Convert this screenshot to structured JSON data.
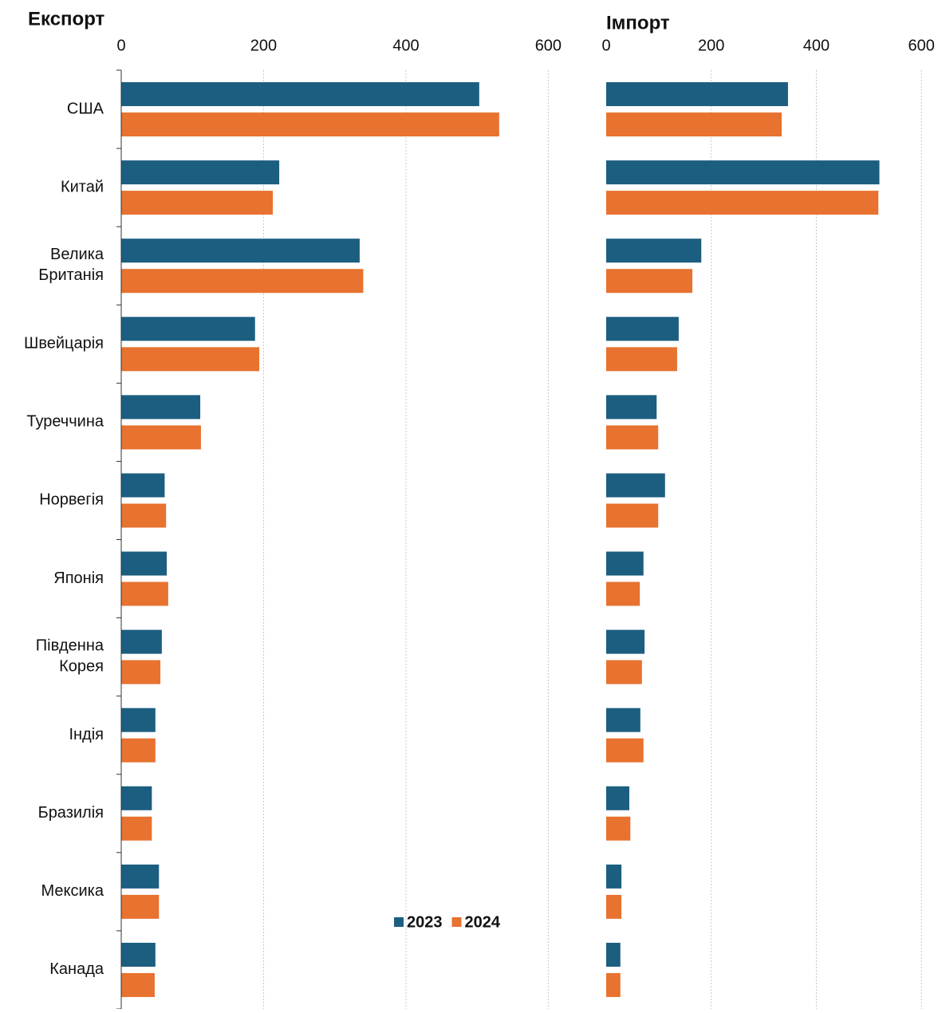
{
  "chart_data": [
    {
      "type": "bar",
      "orientation": "horizontal",
      "title": "Експорт",
      "categories": [
        "США",
        "Китай",
        "Велика Британія",
        "Швейцарія",
        "Туреччина",
        "Норвегія",
        "Японія",
        "Південна Корея",
        "Індія",
        "Бразилія",
        "Мексика",
        "Канада"
      ],
      "series": [
        {
          "name": "2023",
          "color": "#1b5e80",
          "values": [
            503,
            222,
            335,
            188,
            111,
            61,
            64,
            57,
            48,
            43,
            53,
            48
          ]
        },
        {
          "name": "2024",
          "color": "#e8722f",
          "values": [
            531,
            213,
            340,
            194,
            112,
            63,
            66,
            55,
            48,
            43,
            53,
            47
          ]
        }
      ],
      "xlim": [
        0,
        650
      ],
      "xticks": [
        0,
        200,
        400,
        600
      ],
      "grid": true
    },
    {
      "type": "bar",
      "orientation": "horizontal",
      "title": "Імпорт",
      "series": [
        {
          "name": "2023",
          "color": "#1b5e80",
          "values": [
            346,
            520,
            181,
            138,
            96,
            112,
            71,
            73,
            65,
            44,
            29,
            27
          ]
        },
        {
          "name": "2024",
          "color": "#e8722f",
          "values": [
            334,
            518,
            164,
            135,
            99,
            99,
            64,
            68,
            71,
            46,
            29,
            27
          ]
        }
      ],
      "xlim": [
        0,
        630
      ],
      "xticks": [
        0,
        200,
        400,
        600
      ],
      "grid": true
    }
  ]
}
